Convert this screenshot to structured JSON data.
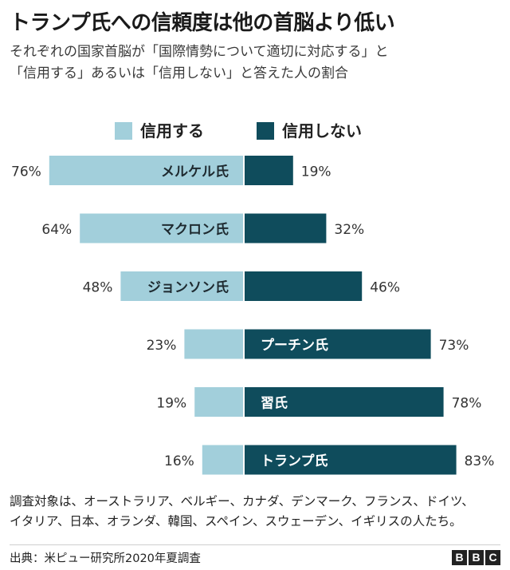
{
  "header": {
    "title": "トランプ氏への信頼度は他の首脳より低い",
    "subtitle_line1": "それぞれの国家首脳が「国際情勢について適切に対応する」と",
    "subtitle_line2": "「信用する」あるいは「信用しない」と答えた人の割合"
  },
  "chart_data": {
    "type": "bar",
    "orientation": "diverging-horizontal",
    "title": "トランプ氏への信頼度は他の首脳より低い",
    "categories": [
      "メルケル氏",
      "マクロン氏",
      "ジョンソン氏",
      "プーチン氏",
      "習氏",
      "トランプ氏"
    ],
    "series": [
      {
        "name": "信用する",
        "values": [
          76,
          64,
          48,
          23,
          19,
          16
        ],
        "labels": [
          "76%",
          "64%",
          "48%",
          "23%",
          "19%",
          "16%"
        ],
        "color": "#a2cfdb"
      },
      {
        "name": "信用しない",
        "values": [
          19,
          32,
          46,
          73,
          78,
          83
        ],
        "labels": [
          "19%",
          "32%",
          "46%",
          "73%",
          "78%",
          "83%"
        ],
        "color": "#0f4c5c"
      }
    ],
    "unit": "%",
    "xlim": [
      0,
      100
    ],
    "legend": "top-center"
  },
  "legend": {
    "trust_label": "信用する",
    "distrust_label": "信用しない",
    "trust_color": "#a2cfdb",
    "distrust_color": "#0f4c5c"
  },
  "note": {
    "line1": "調査対象は、オーストラリア、ベルギー、カナダ、デンマーク、フランス、ドイツ、",
    "line2": "イタリア、日本、オランダ、韓国、スペイン、スウェーデン、イギリスの人たち。"
  },
  "footer": {
    "source": "出典：米ピュー研究所2020年夏調査",
    "logo_letters": [
      "B",
      "B",
      "C"
    ]
  }
}
